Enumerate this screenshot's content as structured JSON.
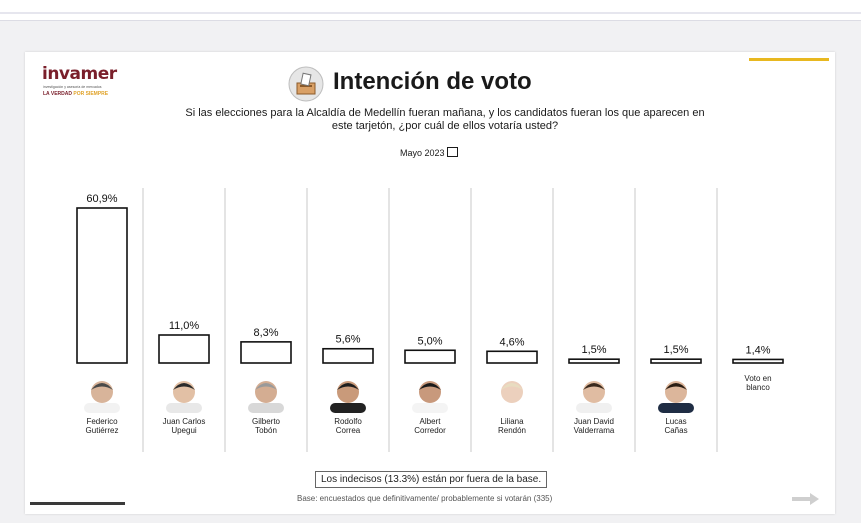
{
  "header": {
    "logo_word": "invamer",
    "logo_sub": "investigación y asesoría de mercados",
    "logo_tag_main": "LA VERDAD ",
    "logo_tag_accent": "POR SIEMPRE",
    "title": "Intención de voto",
    "question": "Si las elecciones para la Alcaldía de Medellín fueran mañana, y los candidatos fueran los que aparecen en este tarjetón, ¿por cuál de ellos votaría usted?",
    "period": "Mayo 2023"
  },
  "colors": {
    "accent_gold": "#e8b820",
    "brand": "#7a1f2b",
    "bar_stroke": "#111111"
  },
  "chart_data": {
    "type": "bar",
    "title": "Intención de voto",
    "categories": [
      "Federico Gutiérrez",
      "Juan Carlos Upegui",
      "Gilberto Tobón",
      "Rodolfo Correa",
      "Albert Corredor",
      "Liliana Rendón",
      "Juan David Valderrama",
      "Lucas Cañas",
      "Voto en blanco"
    ],
    "category_lines": [
      [
        "Federico",
        "Gutiérrez"
      ],
      [
        "Juan Carlos",
        "Upegui"
      ],
      [
        "Gilberto",
        "Tobón"
      ],
      [
        "Rodolfo",
        "Correa"
      ],
      [
        "Albert",
        "Corredor"
      ],
      [
        "Liliana",
        "Rendón"
      ],
      [
        "Juan David",
        "Valderrama"
      ],
      [
        "Lucas",
        "Cañas"
      ],
      [
        "Voto en",
        "blanco"
      ]
    ],
    "values": [
      60.9,
      11.0,
      8.3,
      5.6,
      5.0,
      4.6,
      1.5,
      1.5,
      1.4
    ],
    "value_labels": [
      "60,9%",
      "11,0%",
      "8,3%",
      "5,6%",
      "5,0%",
      "4,6%",
      "1,5%",
      "1,5%",
      "1,4%"
    ],
    "has_photo": [
      true,
      true,
      true,
      true,
      true,
      true,
      true,
      true,
      false
    ],
    "ylim": [
      0,
      60.9
    ],
    "grid": false,
    "legend": "none"
  },
  "footer": {
    "undecided_note": "Los indecisos (13.3%) están por fuera de la base.",
    "base_note": "Base: encuestados que definitivamente/ probablemente si votarán (335)"
  },
  "icons": [
    "ballot-box-icon",
    "next-arrow-icon"
  ]
}
